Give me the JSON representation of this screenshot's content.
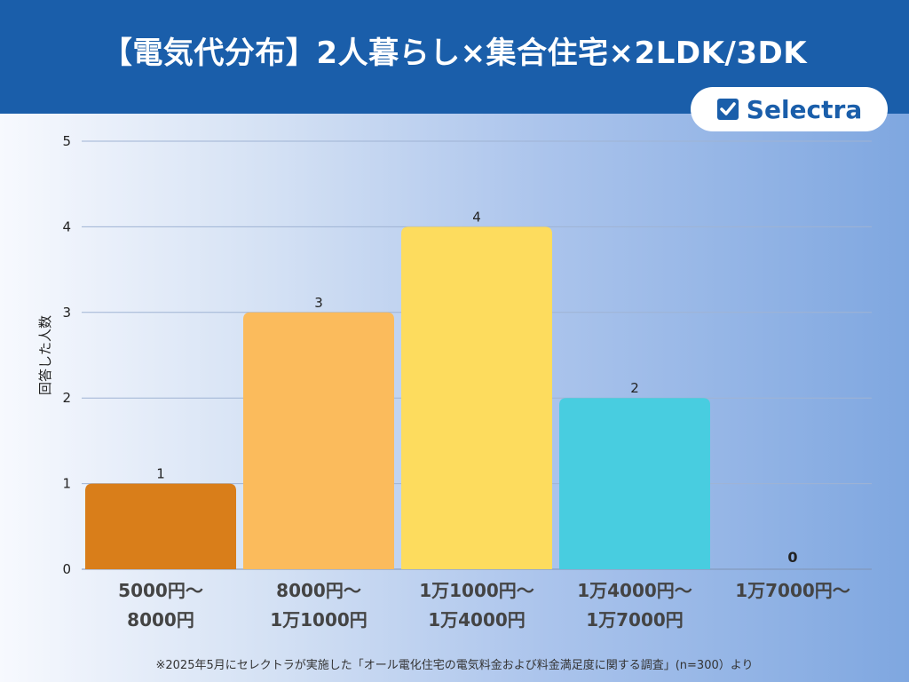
{
  "header": {
    "title": "【電気代分布】2人暮らし×集合住宅×2LDK/3DK",
    "logo_text": "Selectra",
    "background": "#1a5eaa"
  },
  "chart_data": {
    "type": "bar",
    "categories": [
      "5000円〜\n8000円",
      "8000円〜\n1万1000円",
      "1万1000円〜\n1万4000円",
      "1万4000円〜\n1万7000円",
      "1万7000円〜"
    ],
    "values": [
      1,
      3,
      4,
      2,
      0
    ],
    "colors": [
      "#d97e1a",
      "#fbbb5c",
      "#fddc5e",
      "#48cde0",
      "#48cde0"
    ],
    "ylabel": "回答した人数",
    "xlabel": "",
    "ylim": [
      0,
      5
    ],
    "yticks": [
      0,
      1,
      2,
      3,
      4,
      5
    ],
    "grid": true
  },
  "footnote": "※2025年5月にセレクトラが実施した「オール電化住宅の電気料金および料金満足度に関する調査」(n=300）より"
}
